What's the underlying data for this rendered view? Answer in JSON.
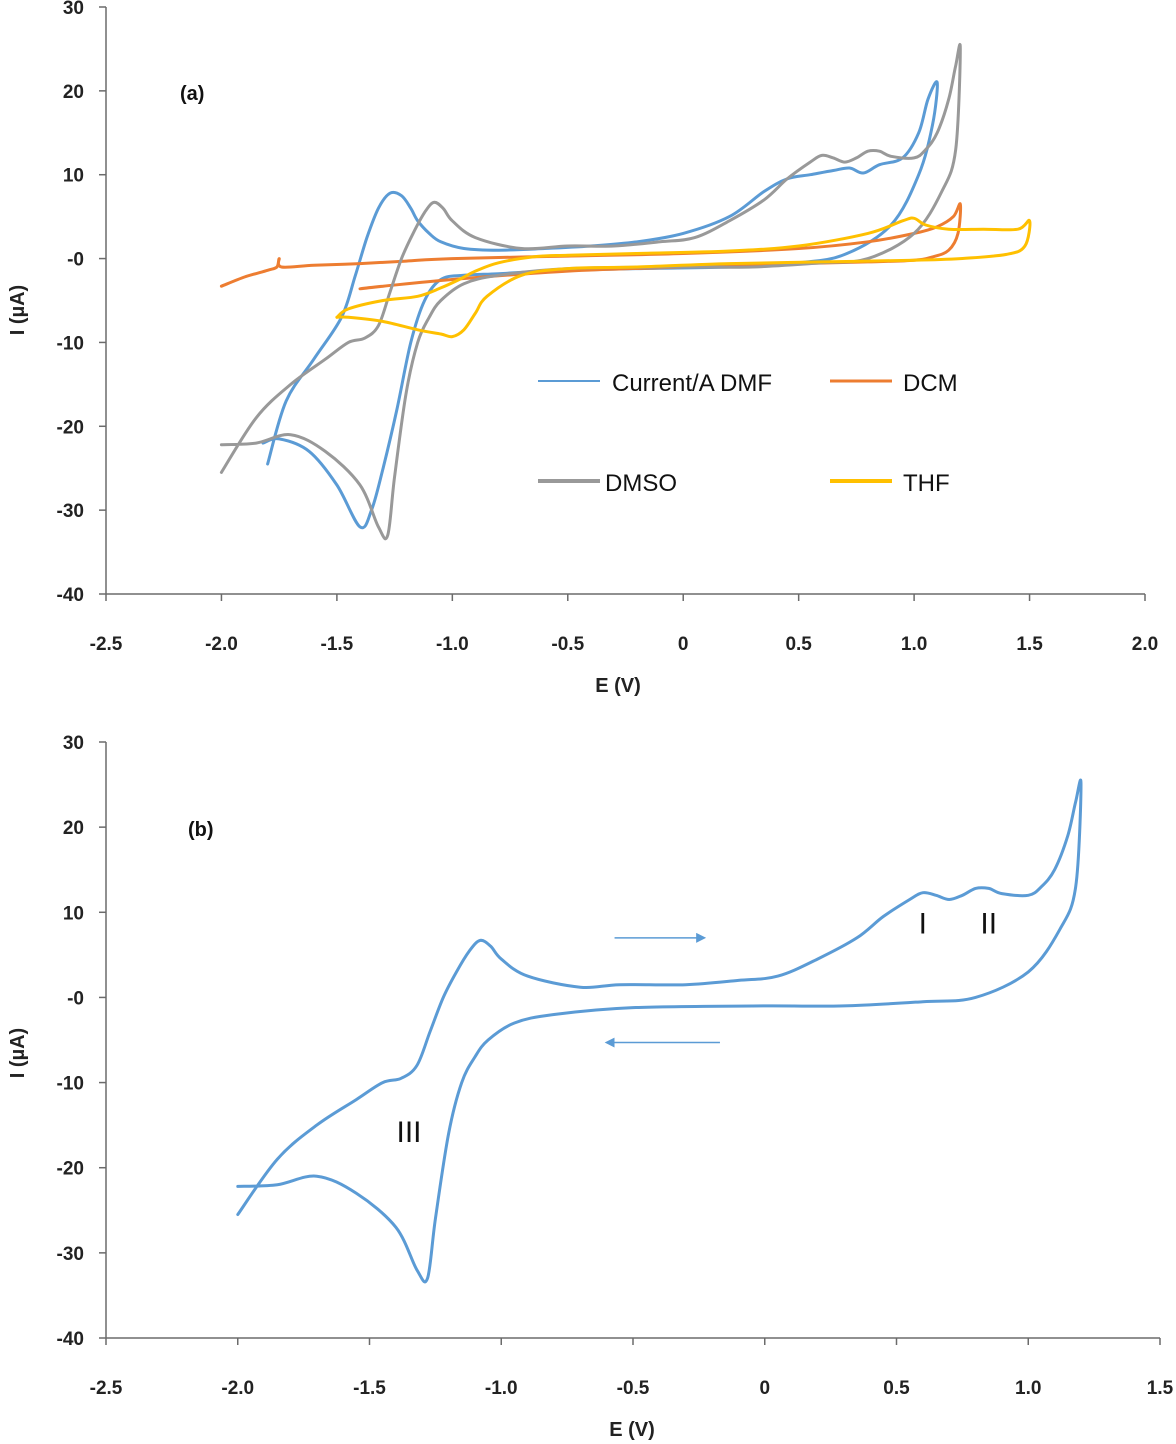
{
  "chart_data": [
    {
      "type": "line",
      "panel_label": "(a)",
      "xlabel": "E (V)",
      "ylabel": "I (µA)",
      "xlim": [
        -2.5,
        2.0
      ],
      "ylim": [
        -40,
        30
      ],
      "x_ticks": [
        -2.5,
        -2.0,
        -1.5,
        -1.0,
        -0.5,
        0,
        0.5,
        1.0,
        1.5,
        2.0
      ],
      "x_tick_labels": [
        "-2.5",
        "-2.0",
        "-1.5",
        "-1.0",
        "-0.5",
        "0",
        "0.5",
        "1.0",
        "1.5",
        "2.0"
      ],
      "y_ticks": [
        30,
        20,
        10,
        0,
        -10,
        -20,
        -30,
        -40
      ],
      "y_tick_labels": [
        "30",
        "20",
        "10",
        "-0",
        "-10",
        "-20",
        "-30",
        "-40"
      ],
      "grid": false,
      "legend_placement": "center-right (inside plot, 2 columns)",
      "series": [
        {
          "name": "Current/A DMF",
          "color": "#5b9bd5",
          "width": 2,
          "x": [
            -1.8,
            -1.72,
            -1.6,
            -1.48,
            -1.42,
            -1.37,
            -1.32,
            -1.27,
            -1.22,
            -1.18,
            -1.15,
            -1.1,
            -1.05,
            -0.95,
            -0.8,
            -0.6,
            -0.4,
            -0.2,
            0.0,
            0.2,
            0.35,
            0.45,
            0.55,
            0.65,
            0.72,
            0.78,
            0.85,
            0.95,
            1.02,
            1.06,
            1.1,
            1.08,
            1.02,
            0.9,
            0.7,
            0.5,
            0.2,
            -0.2,
            -0.6,
            -0.8,
            -0.95,
            -1.05,
            -1.12,
            -1.18,
            -1.24,
            -1.3,
            -1.35,
            -1.4,
            -1.5,
            -1.62,
            -1.75,
            -1.82
          ],
          "y": [
            -24.5,
            -17,
            -12,
            -7,
            -2,
            2.5,
            6,
            7.8,
            7.5,
            6,
            4.5,
            3,
            2,
            1.2,
            1,
            1.2,
            1.5,
            2,
            3,
            5,
            8,
            9.5,
            10,
            10.5,
            10.8,
            10.2,
            11.2,
            12,
            15,
            19,
            21,
            16,
            10,
            4,
            0.5,
            -0.5,
            -1,
            -1.2,
            -1.5,
            -1.8,
            -2,
            -2.5,
            -5,
            -10,
            -18,
            -25,
            -30,
            -32,
            -27,
            -23,
            -21.5,
            -22
          ]
        },
        {
          "name": "DCM",
          "color": "#ed7d31",
          "width": 3,
          "x": [
            -2.0,
            -1.9,
            -1.8,
            -1.76,
            -1.75,
            -1.74,
            -1.6,
            -1.4,
            -1.2,
            -1.0,
            -0.5,
            0.0,
            0.5,
            0.8,
            1.0,
            1.1,
            1.17,
            1.2,
            1.19,
            1.15,
            1.08,
            1.0,
            0.8,
            0.5,
            0.0,
            -0.5,
            -1.0,
            -1.3,
            -1.4
          ],
          "y": [
            -3.3,
            -2.2,
            -1.4,
            -1,
            0,
            -1,
            -0.8,
            -0.6,
            -0.3,
            0,
            0.3,
            0.6,
            1.2,
            2,
            3,
            3.8,
            5,
            6.5,
            3,
            1,
            0.2,
            -0.2,
            -0.4,
            -0.6,
            -1,
            -1.5,
            -2.5,
            -3.3,
            -3.6
          ]
        },
        {
          "name": "DMSO",
          "color": "#999999",
          "width": 4,
          "x": [
            -2.0,
            -1.85,
            -1.7,
            -1.55,
            -1.45,
            -1.38,
            -1.32,
            -1.27,
            -1.22,
            -1.17,
            -1.12,
            -1.08,
            -1.04,
            -1.0,
            -0.9,
            -0.7,
            -0.5,
            -0.3,
            -0.1,
            0.05,
            0.2,
            0.35,
            0.45,
            0.55,
            0.6,
            0.65,
            0.7,
            0.75,
            0.8,
            0.85,
            0.9,
            1.0,
            1.05,
            1.1,
            1.15,
            1.18,
            1.2,
            1.18,
            1.12,
            1.0,
            0.8,
            0.6,
            0.3,
            0.0,
            -0.5,
            -0.8,
            -0.95,
            -1.05,
            -1.1,
            -1.15,
            -1.2,
            -1.25,
            -1.28,
            -1.32,
            -1.4,
            -1.55,
            -1.7,
            -1.85,
            -2.0
          ],
          "y": [
            -25.5,
            -19,
            -15,
            -12,
            -10,
            -9.5,
            -8,
            -4,
            0,
            3,
            5.5,
            6.7,
            6,
            4.5,
            2.5,
            1.2,
            1.5,
            1.5,
            2,
            2.5,
            4.5,
            7,
            9.5,
            11.5,
            12.3,
            12,
            11.5,
            12,
            12.8,
            12.8,
            12.2,
            12,
            13,
            15,
            19,
            23,
            25,
            13,
            8,
            3,
            0,
            -0.5,
            -1,
            -1,
            -1.2,
            -2,
            -3,
            -5,
            -7,
            -10,
            -16,
            -26,
            -33,
            -32,
            -27,
            -23,
            -21,
            -22,
            -22.2
          ]
        },
        {
          "name": "THF",
          "color": "#ffc000",
          "width": 4,
          "x": [
            -1.5,
            -1.45,
            -1.3,
            -1.15,
            -1.05,
            -0.97,
            -0.9,
            -0.8,
            -0.65,
            -0.5,
            -0.2,
            0.2,
            0.5,
            0.8,
            0.95,
            1.0,
            1.05,
            1.15,
            1.3,
            1.45,
            1.5,
            1.48,
            1.4,
            1.2,
            1.0,
            0.6,
            0.2,
            -0.2,
            -0.5,
            -0.7,
            -0.85,
            -0.9,
            -0.95,
            -1.0,
            -1.05,
            -1.15,
            -1.3,
            -1.45,
            -1.5
          ],
          "y": [
            -7,
            -6,
            -5,
            -4.5,
            -3.5,
            -2.5,
            -1.5,
            -0.5,
            0.2,
            0.4,
            0.6,
            0.9,
            1.5,
            3,
            4.5,
            4.8,
            4,
            3.5,
            3.5,
            3.5,
            4.5,
            1.5,
            0.5,
            0,
            -0.2,
            -0.4,
            -0.6,
            -1,
            -1.2,
            -2,
            -4.5,
            -6.5,
            -8.5,
            -9.3,
            -9,
            -8.5,
            -7.5,
            -7,
            -7
          ]
        }
      ]
    },
    {
      "type": "line",
      "panel_label": "(b)",
      "xlabel": "E (V)",
      "ylabel": "I (µA)",
      "xlim": [
        -2.5,
        1.5
      ],
      "ylim": [
        -40,
        30
      ],
      "x_ticks": [
        -2.5,
        -2.0,
        -1.5,
        -1.0,
        -0.5,
        0,
        0.5,
        1.0,
        1.5
      ],
      "x_tick_labels": [
        "-2.5",
        "-2.0",
        "-1.5",
        "-1.0",
        "-0.5",
        "0",
        "0.5",
        "1.0",
        "1.5"
      ],
      "y_ticks": [
        30,
        20,
        10,
        0,
        -10,
        -20,
        -30,
        -40
      ],
      "y_tick_labels": [
        "30",
        "20",
        "10",
        "-0",
        "-10",
        "-20",
        "-30",
        "-40"
      ],
      "grid": false,
      "annotations": [
        {
          "text": "I",
          "x": 0.6,
          "y": 7.5
        },
        {
          "text": "II",
          "x": 0.85,
          "y": 7.5
        },
        {
          "text": "III",
          "x": -1.35,
          "y": -17
        }
      ],
      "arrows": [
        {
          "direction": "right",
          "from": [
            -0.57,
            7
          ],
          "to": [
            -0.23,
            7
          ]
        },
        {
          "direction": "left",
          "from": [
            -0.17,
            -5.3
          ],
          "to": [
            -0.6,
            -5.3
          ]
        }
      ],
      "series": [
        {
          "name": "",
          "color": "#5b9bd5",
          "width": 4,
          "x": [
            -2.0,
            -1.85,
            -1.7,
            -1.55,
            -1.45,
            -1.38,
            -1.32,
            -1.27,
            -1.22,
            -1.17,
            -1.12,
            -1.08,
            -1.04,
            -1.0,
            -0.9,
            -0.7,
            -0.55,
            -0.3,
            -0.1,
            0.05,
            0.2,
            0.35,
            0.45,
            0.55,
            0.6,
            0.65,
            0.7,
            0.75,
            0.8,
            0.85,
            0.9,
            1.0,
            1.05,
            1.1,
            1.15,
            1.18,
            1.2,
            1.18,
            1.12,
            1.0,
            0.8,
            0.6,
            0.3,
            0.0,
            -0.5,
            -0.8,
            -0.95,
            -1.05,
            -1.1,
            -1.15,
            -1.2,
            -1.25,
            -1.28,
            -1.32,
            -1.4,
            -1.55,
            -1.7,
            -1.85,
            -2.0
          ],
          "y": [
            -25.5,
            -19,
            -15,
            -12,
            -10,
            -9.5,
            -8,
            -4,
            0,
            3,
            5.5,
            6.7,
            6,
            4.5,
            2.5,
            1.2,
            1.5,
            1.5,
            2,
            2.5,
            4.5,
            7,
            9.5,
            11.5,
            12.3,
            12,
            11.5,
            12,
            12.8,
            12.8,
            12.2,
            12,
            13,
            15,
            19,
            23,
            25,
            13,
            8,
            3,
            0,
            -0.5,
            -1,
            -1,
            -1.2,
            -2,
            -3,
            -5,
            -7,
            -10,
            -16,
            -26,
            -33,
            -32,
            -27,
            -23,
            -21,
            -22,
            -22.2
          ]
        }
      ]
    }
  ]
}
